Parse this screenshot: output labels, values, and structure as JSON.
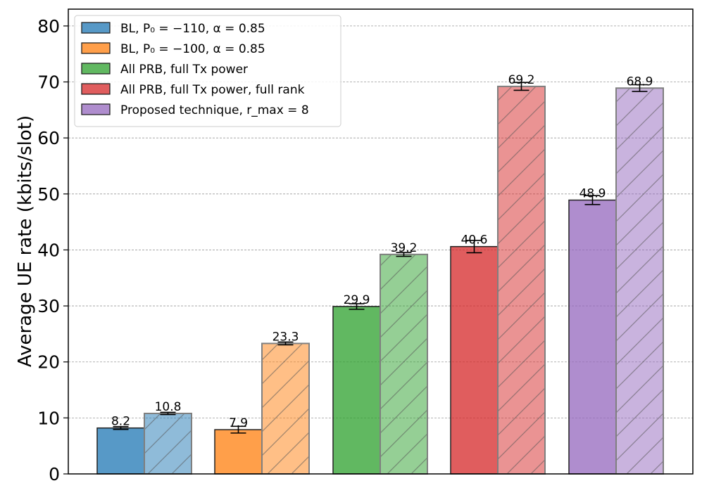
{
  "chart_data": {
    "type": "bar",
    "title": "",
    "xlabel": "",
    "ylabel": "Average UE rate (kbits/slot)",
    "ylim": [
      0,
      83
    ],
    "yticks": [
      0,
      10,
      20,
      30,
      40,
      50,
      60,
      70,
      80
    ],
    "grid": "horizontal dashed",
    "legend_position": "top-left",
    "series": [
      {
        "name": "BL, P0 = −110, α = 0.85",
        "legend_label": "BL, P₀ = −110, α = 0.85",
        "color": "#1f77b4",
        "values": [
          8.2,
          10.8
        ],
        "error": [
          0.25,
          0.2
        ],
        "labels": [
          "8.2",
          "10.8"
        ]
      },
      {
        "name": "BL, P0 = −100, α = 0.85",
        "legend_label": "BL, P₀ = −100, α = 0.85",
        "color": "#ff7f0e",
        "values": [
          7.9,
          23.3
        ],
        "error": [
          0.6,
          0.25
        ],
        "labels": [
          "7.9",
          "23.3"
        ]
      },
      {
        "name": "All PRB, full Tx power",
        "legend_label": "All PRB, full Tx power",
        "color": "#2ca02c",
        "values": [
          29.9,
          39.2
        ],
        "error": [
          0.5,
          0.35
        ],
        "labels": [
          "29.9",
          "39.2"
        ]
      },
      {
        "name": "All PRB, full Tx power, full rank",
        "legend_label": "All PRB, full Tx power, full rank",
        "color": "#d62728",
        "values": [
          40.6,
          69.2
        ],
        "error": [
          1.1,
          0.7
        ],
        "labels": [
          "40.6",
          "69.2"
        ]
      },
      {
        "name": "Proposed technique, r_max = 8",
        "legend_label": "Proposed technique, r_max = 8",
        "color": "#9467bd",
        "values": [
          48.9,
          68.9
        ],
        "error": [
          0.8,
          0.6
        ],
        "labels": [
          "48.9",
          "68.9"
        ]
      }
    ]
  }
}
